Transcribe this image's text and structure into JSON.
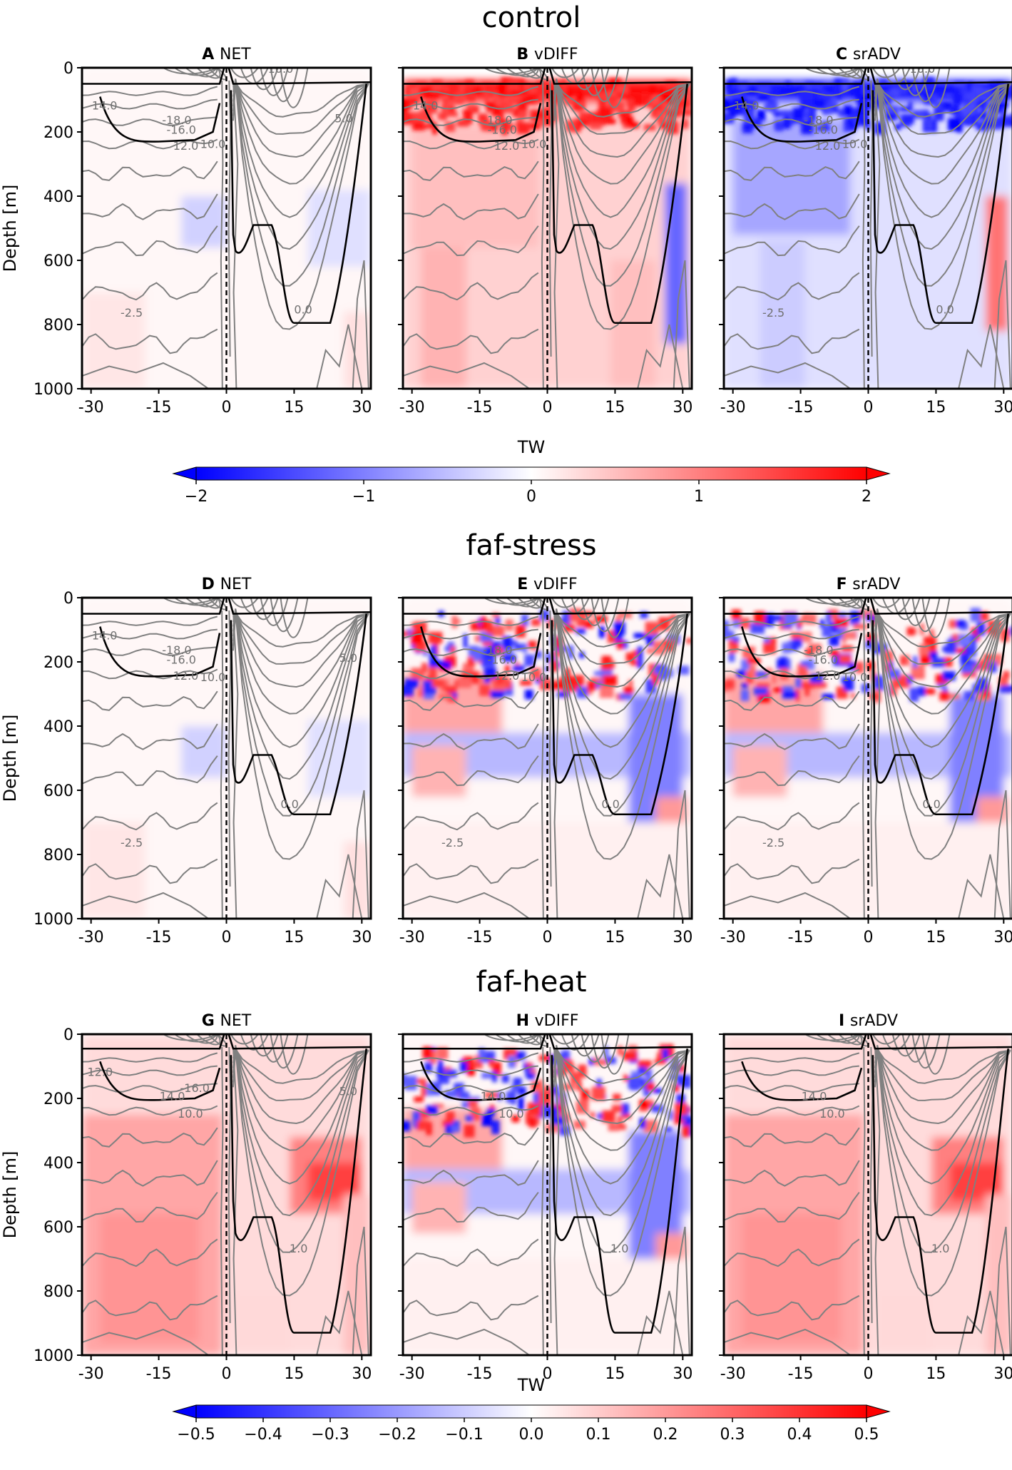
{
  "chart_data": {
    "type": "heatmap",
    "panel_grid": "3x3",
    "xlim": [
      -32,
      32
    ],
    "ylim": [
      1000,
      0
    ],
    "ylabel": "Depth [m]",
    "x_ticks": [
      -30,
      -15,
      0,
      15,
      30
    ],
    "x_tick_labels": [
      "-30",
      "-15",
      "0",
      "15",
      "30"
    ],
    "y_ticks": [
      0,
      200,
      400,
      600,
      800,
      1000
    ],
    "y_tick_labels": [
      "0",
      "200",
      "400",
      "600",
      "800",
      "1000"
    ],
    "colorbars": [
      {
        "label": "TW",
        "range": [
          -2,
          2
        ],
        "ticks": [
          -2,
          -1,
          0,
          1,
          2
        ],
        "tick_labels": [
          "−2",
          "−1",
          "0",
          "1",
          "2"
        ],
        "colormap": "bwr",
        "extend": "both"
      },
      {
        "label": "TW",
        "range": [
          -0.5,
          0.5
        ],
        "ticks": [
          -0.5,
          -0.4,
          -0.3,
          -0.2,
          -0.1,
          0.0,
          0.1,
          0.2,
          0.3,
          0.4,
          0.5
        ],
        "tick_labels": [
          "−0.5",
          "−0.4",
          "−0.3",
          "−0.2",
          "−0.1",
          "0.0",
          "0.1",
          "0.2",
          "0.3",
          "0.4",
          "0.5"
        ],
        "colormap": "bwr",
        "extend": "both"
      }
    ],
    "rows": [
      {
        "title": "control",
        "colorbar_index": 0,
        "contour_labels": [
          {
            "text": "14.0",
            "x": -27,
            "y": 130,
            "panels": [
              0,
              1,
              2
            ]
          },
          {
            "text": "-18.0",
            "x": -11,
            "y": 175,
            "panels": [
              0,
              1,
              2
            ]
          },
          {
            "text": "-16.0",
            "x": -10,
            "y": 205,
            "panels": [
              0,
              1,
              2
            ]
          },
          {
            "text": "12.0",
            "x": -9,
            "y": 255,
            "panels": [
              0,
              1,
              2
            ]
          },
          {
            "text": "10.0",
            "x": -3,
            "y": 250,
            "panels": [
              0,
              1,
              2
            ]
          },
          {
            "text": "10.0",
            "x": 12,
            "y": 15,
            "panels": [
              0,
              2
            ]
          },
          {
            "text": "5.0",
            "x": 26,
            "y": 170,
            "panels": [
              0
            ]
          },
          {
            "text": "-2.5",
            "x": -21,
            "y": 775,
            "panels": [
              0,
              2
            ]
          },
          {
            "text": "0.0",
            "x": 17,
            "y": 765,
            "panels": [
              0,
              2
            ]
          }
        ],
        "thick_outline_depths": {
          "surface": 50,
          "south_basin_max": 230,
          "north_plateau": 490,
          "north_max": 795
        },
        "panels": [
          {
            "letter": "A",
            "name": "NET",
            "field": "weak"
          },
          {
            "letter": "B",
            "name": "vDIFF",
            "field": "positive"
          },
          {
            "letter": "C",
            "name": "srADV",
            "field": "negative"
          }
        ]
      },
      {
        "title": "faf-stress",
        "colorbar_index": 1,
        "contour_labels": [
          {
            "text": "14.0",
            "x": -27,
            "y": 130,
            "panels": [
              0
            ]
          },
          {
            "text": "-18.0",
            "x": -11,
            "y": 175,
            "panels": [
              0,
              1,
              2
            ]
          },
          {
            "text": "-16.0",
            "x": -10,
            "y": 205,
            "panels": [
              0,
              1,
              2
            ]
          },
          {
            "text": "12.0",
            "x": -9,
            "y": 255,
            "panels": [
              0,
              1,
              2
            ]
          },
          {
            "text": "10.0",
            "x": -3,
            "y": 260,
            "panels": [
              0,
              1,
              2
            ]
          },
          {
            "text": "5.0",
            "x": 27,
            "y": 200,
            "panels": [
              0
            ]
          },
          {
            "text": "-2.5",
            "x": -21,
            "y": 775,
            "panels": [
              0,
              1,
              2
            ]
          },
          {
            "text": "0.0",
            "x": 14,
            "y": 655,
            "panels": [
              0,
              1,
              2
            ]
          }
        ],
        "thick_outline_depths": {
          "surface": 50,
          "south_basin_max": 245,
          "north_plateau": 490,
          "north_max": 675
        },
        "panels": [
          {
            "letter": "D",
            "name": "NET",
            "field": "weak"
          },
          {
            "letter": "E",
            "name": "vDIFF",
            "field": "mixed"
          },
          {
            "letter": "F",
            "name": "srADV",
            "field": "mixed"
          }
        ]
      },
      {
        "title": "faf-heat",
        "colorbar_index": 1,
        "contour_labels": [
          {
            "text": "12.0",
            "x": -28,
            "y": 130,
            "panels": [
              0
            ]
          },
          {
            "text": "-16.0",
            "x": -7,
            "y": 180,
            "panels": [
              0
            ]
          },
          {
            "text": "14.0",
            "x": -12,
            "y": 205,
            "panels": [
              0,
              1,
              2
            ]
          },
          {
            "text": "10.0",
            "x": -8,
            "y": 260,
            "panels": [
              0,
              1,
              2
            ]
          },
          {
            "text": "5.0",
            "x": 27,
            "y": 190,
            "panels": [
              0
            ]
          },
          {
            "text": "1.0",
            "x": 16,
            "y": 680,
            "panels": [
              0,
              1,
              2
            ]
          }
        ],
        "thick_outline_depths": {
          "surface": 45,
          "south_basin_max": 205,
          "north_plateau": 570,
          "north_max": 930
        },
        "panels": [
          {
            "letter": "G",
            "name": "NET",
            "field": "warm"
          },
          {
            "letter": "H",
            "name": "vDIFF",
            "field": "mixed"
          },
          {
            "letter": "I",
            "name": "srADV",
            "field": "warm"
          }
        ]
      }
    ]
  }
}
